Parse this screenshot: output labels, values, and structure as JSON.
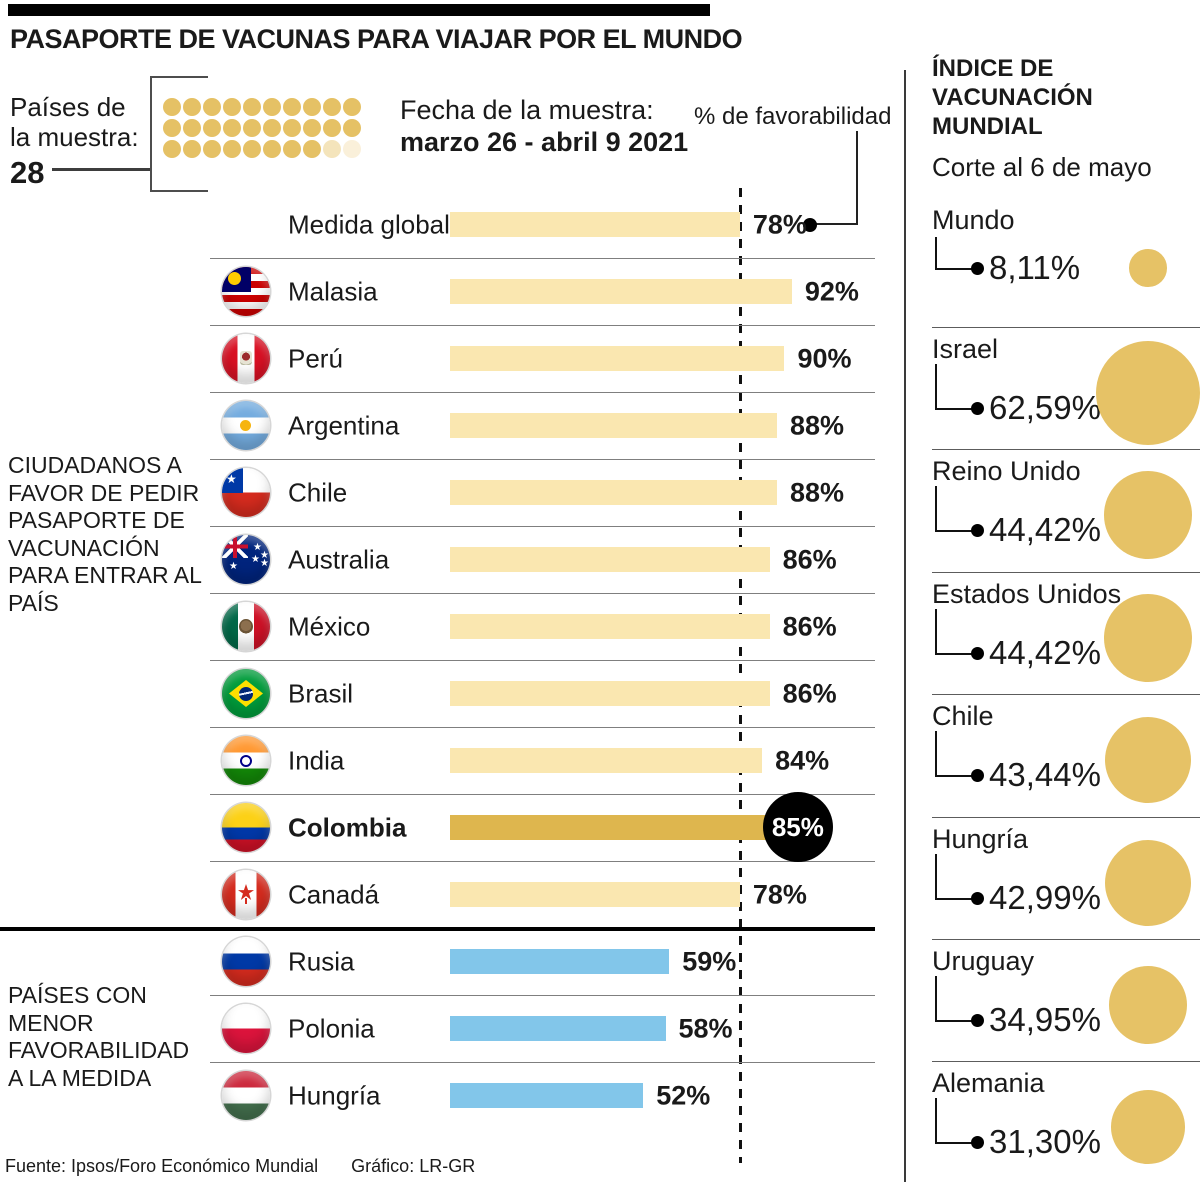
{
  "colors": {
    "accent_gold": "#E5C165",
    "bar_cream": "#FAE7B0",
    "bar_gold": "#DEB64E",
    "bar_blue": "#82C6EA",
    "highlight_black": "#000000",
    "text": "#1a1a1a",
    "separator_gray": "#7f7f7f"
  },
  "header": {
    "title": "PASAPORTE DE VACUNAS PARA VIAJAR POR EL MUNDO"
  },
  "sample": {
    "label": "Países de la muestra:",
    "count": "28",
    "dots_total": 30,
    "dots_full": 28,
    "date_label": "Fecha de la muestra:",
    "date_value": "marzo 26 - abril 9 2021",
    "favorability_label": "% de favorabilidad"
  },
  "groups": {
    "favor": "CIUDADANOS A FAVOR DE PEDIR PASAPORTE DE VACUNACIÓN PARA ENTRAR AL PAÍS",
    "menor": "PAÍSES CON MENOR FAVORABILIDAD A LA MEDIDA"
  },
  "bars": [
    {
      "label": "Medida global",
      "flag": null,
      "value": 78,
      "display": "78%",
      "style": "cream",
      "section": "global"
    },
    {
      "label": "Malasia",
      "flag": "malaysia",
      "value": 92,
      "display": "92%",
      "style": "cream",
      "section": "favor"
    },
    {
      "label": "Perú",
      "flag": "peru",
      "value": 90,
      "display": "90%",
      "style": "cream",
      "section": "favor"
    },
    {
      "label": "Argentina",
      "flag": "argentina",
      "value": 88,
      "display": "88%",
      "style": "cream",
      "section": "favor"
    },
    {
      "label": "Chile",
      "flag": "chile",
      "value": 88,
      "display": "88%",
      "style": "cream",
      "section": "favor"
    },
    {
      "label": "Australia",
      "flag": "australia",
      "value": 86,
      "display": "86%",
      "style": "cream",
      "section": "favor"
    },
    {
      "label": "México",
      "flag": "mexico",
      "value": 86,
      "display": "86%",
      "style": "cream",
      "section": "favor"
    },
    {
      "label": "Brasil",
      "flag": "brazil",
      "value": 86,
      "display": "86%",
      "style": "cream",
      "section": "favor"
    },
    {
      "label": "India",
      "flag": "india",
      "value": 84,
      "display": "84%",
      "style": "cream",
      "section": "favor"
    },
    {
      "label": "Colombia",
      "flag": "colombia",
      "value": 85,
      "display": "85%",
      "style": "gold",
      "bold": true,
      "highlight": true,
      "section": "favor"
    },
    {
      "label": "Canadá",
      "flag": "canada",
      "value": 78,
      "display": "78%",
      "style": "cream",
      "section": "favor"
    },
    {
      "label": "Rusia",
      "flag": "russia",
      "value": 59,
      "display": "59%",
      "style": "blue",
      "section": "menor"
    },
    {
      "label": "Polonia",
      "flag": "poland",
      "value": 58,
      "display": "58%",
      "style": "blue",
      "section": "menor"
    },
    {
      "label": "Hungría",
      "flag": "hungary",
      "value": 52,
      "display": "52%",
      "style": "blue",
      "section": "menor"
    }
  ],
  "right_panel": {
    "title": "ÍNDICE DE VACUNACIÓN MUNDIAL",
    "subtitle": "Corte al 6 de mayo",
    "entries": [
      {
        "name": "Mundo",
        "value": 8.11,
        "display": "8,11%"
      },
      {
        "name": "Israel",
        "value": 62.59,
        "display": "62,59%"
      },
      {
        "name": "Reino Unido",
        "value": 44.42,
        "display": "44,42%"
      },
      {
        "name": "Estados Unidos",
        "value": 44.42,
        "display": "44,42%"
      },
      {
        "name": "Chile",
        "value": 43.44,
        "display": "43,44%"
      },
      {
        "name": "Hungría",
        "value": 42.99,
        "display": "42,99%"
      },
      {
        "name": "Uruguay",
        "value": 34.95,
        "display": "34,95%"
      },
      {
        "name": "Alemania",
        "value": 31.3,
        "display": "31,30%"
      }
    ]
  },
  "footer": {
    "source": "Fuente: Ipsos/Foro Económico Mundial",
    "credit": "Gráfico: LR-GR"
  },
  "chart_data": [
    {
      "type": "bar",
      "orientation": "horizontal",
      "title": "PASAPORTE DE VACUNAS PARA VIAJAR POR EL MUNDO",
      "subtitle": "Fecha de la muestra: marzo 26 - abril 9 2021",
      "unit": "% de favorabilidad",
      "sample_countries": 28,
      "categories": [
        "Medida global",
        "Malasia",
        "Perú",
        "Argentina",
        "Chile",
        "Australia",
        "México",
        "Brasil",
        "India",
        "Colombia",
        "Canadá",
        "Rusia",
        "Polonia",
        "Hungría"
      ],
      "values": [
        78,
        92,
        90,
        88,
        88,
        86,
        86,
        86,
        84,
        85,
        78,
        59,
        58,
        52
      ],
      "reference_line": 78,
      "highlighted_category": "Colombia",
      "group_labels": [
        "CIUDADANOS A FAVOR DE PEDIR PASAPORTE DE VACUNACIÓN PARA ENTRAR AL PAÍS",
        "PAÍSES CON MENOR FAVORABILIDAD A LA MEDIDA"
      ],
      "xlim": [
        0,
        100
      ],
      "grid": false
    },
    {
      "type": "table",
      "title": "ÍNDICE DE VACUNACIÓN MUNDIAL",
      "subtitle": "Corte al 6 de mayo",
      "categories": [
        "Mundo",
        "Israel",
        "Reino Unido",
        "Estados Unidos",
        "Chile",
        "Hungría",
        "Uruguay",
        "Alemania"
      ],
      "values": [
        8.11,
        62.59,
        44.42,
        44.42,
        43.44,
        42.99,
        34.95,
        31.3
      ],
      "representation": "proportional-circles"
    }
  ]
}
